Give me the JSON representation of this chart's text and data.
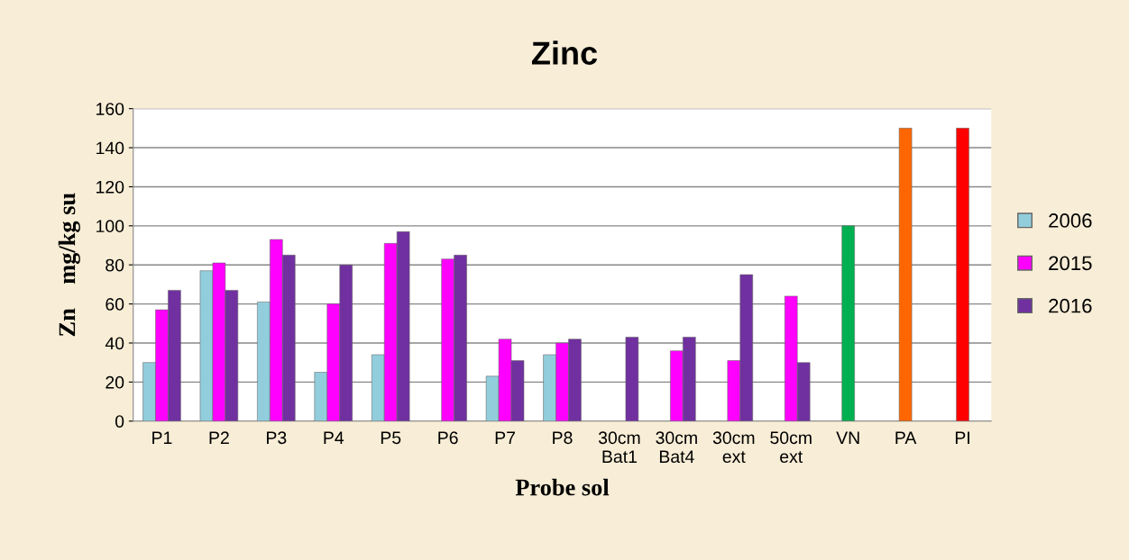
{
  "chart_data": {
    "type": "bar",
    "title": "Zinc",
    "xlabel": "Probe sol",
    "ylabel": "Zn    mg/kg su",
    "categories": [
      "P1",
      "P2",
      "P3",
      "P4",
      "P5",
      "P6",
      "P7",
      "P8",
      "30cm\nBat1",
      "30cm\nBat4",
      "30cm\next",
      "50cm\next",
      "VN",
      "PA",
      "PI"
    ],
    "series": [
      {
        "name": "2006",
        "color": "#92cddc",
        "values": [
          30,
          77,
          61,
          25,
          34,
          null,
          23,
          34,
          null,
          null,
          null,
          null,
          null,
          null,
          null
        ]
      },
      {
        "name": "2015",
        "color": "#ff00ff",
        "colors": [
          "#ff00ff",
          "#ff00ff",
          "#ff00ff",
          "#ff00ff",
          "#ff00ff",
          "#ff00ff",
          "#ff00ff",
          "#ff00ff",
          "#ff00ff",
          "#ff00ff",
          "#ff00ff",
          "#ff00ff",
          "#00b050",
          "#ff6600",
          "#ff0000"
        ],
        "values": [
          57,
          81,
          93,
          60,
          91,
          83,
          42,
          40,
          null,
          36,
          31,
          64,
          100,
          150,
          150
        ]
      },
      {
        "name": "2016",
        "color": "#7030a0",
        "values": [
          67,
          67,
          85,
          80,
          97,
          85,
          31,
          42,
          43,
          43,
          75,
          30,
          null,
          null,
          null
        ]
      }
    ],
    "ylim": [
      0,
      160
    ],
    "yticks": [
      0,
      20,
      40,
      60,
      80,
      100,
      120,
      140,
      160
    ],
    "grid": "y",
    "legend": "right"
  }
}
